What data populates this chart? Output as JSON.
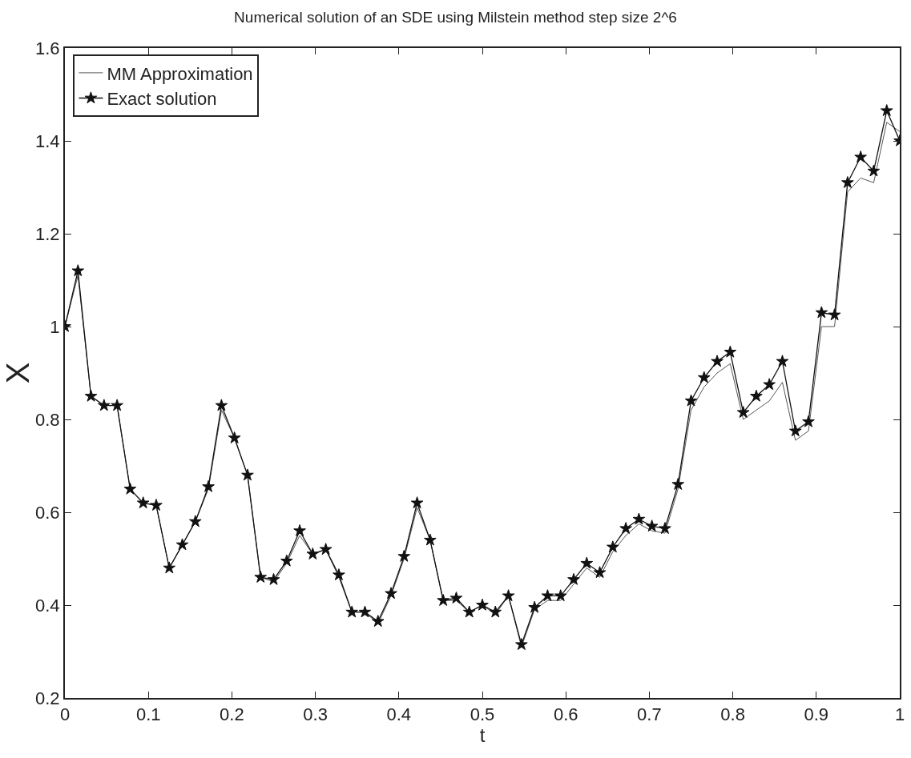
{
  "chart_data": {
    "type": "line",
    "title": "Numerical solution of an SDE using Milstein method step size 2^6",
    "xlabel": "t",
    "ylabel": "X",
    "x": [
      0,
      0.015625,
      0.03125,
      0.046875,
      0.0625,
      0.078125,
      0.09375,
      0.109375,
      0.125,
      0.140625,
      0.15625,
      0.171875,
      0.1875,
      0.203125,
      0.21875,
      0.234375,
      0.25,
      0.265625,
      0.28125,
      0.296875,
      0.3125,
      0.328125,
      0.34375,
      0.359375,
      0.375,
      0.390625,
      0.40625,
      0.421875,
      0.4375,
      0.453125,
      0.46875,
      0.484375,
      0.5,
      0.515625,
      0.53125,
      0.546875,
      0.5625,
      0.578125,
      0.59375,
      0.609375,
      0.625,
      0.640625,
      0.65625,
      0.671875,
      0.6875,
      0.703125,
      0.71875,
      0.734375,
      0.75,
      0.765625,
      0.78125,
      0.796875,
      0.8125,
      0.828125,
      0.84375,
      0.859375,
      0.875,
      0.890625,
      0.90625,
      0.921875,
      0.9375,
      0.953125,
      0.96875,
      0.984375,
      1
    ],
    "series": [
      {
        "name": "MM Approximation",
        "color": "#555555",
        "marker": "none",
        "values": [
          1.0,
          1.11,
          0.85,
          0.83,
          0.83,
          0.65,
          0.62,
          0.615,
          0.48,
          0.53,
          0.58,
          0.65,
          0.82,
          0.76,
          0.68,
          0.46,
          0.45,
          0.49,
          0.55,
          0.51,
          0.52,
          0.46,
          0.385,
          0.385,
          0.36,
          0.42,
          0.5,
          0.61,
          0.54,
          0.41,
          0.41,
          0.385,
          0.4,
          0.38,
          0.42,
          0.31,
          0.39,
          0.41,
          0.41,
          0.445,
          0.48,
          0.46,
          0.515,
          0.55,
          0.575,
          0.56,
          0.555,
          0.65,
          0.82,
          0.87,
          0.9,
          0.92,
          0.8,
          0.82,
          0.84,
          0.88,
          0.755,
          0.775,
          1.0,
          1.0,
          1.29,
          1.32,
          1.31,
          1.44,
          1.42
        ]
      },
      {
        "name": "Exact solution",
        "color": "#111111",
        "marker": "star",
        "values": [
          1.0,
          1.12,
          0.85,
          0.83,
          0.83,
          0.65,
          0.62,
          0.615,
          0.48,
          0.53,
          0.58,
          0.655,
          0.83,
          0.76,
          0.68,
          0.46,
          0.455,
          0.495,
          0.56,
          0.51,
          0.52,
          0.465,
          0.385,
          0.385,
          0.365,
          0.425,
          0.505,
          0.62,
          0.54,
          0.41,
          0.415,
          0.385,
          0.4,
          0.385,
          0.42,
          0.315,
          0.395,
          0.42,
          0.42,
          0.455,
          0.49,
          0.47,
          0.525,
          0.565,
          0.585,
          0.57,
          0.565,
          0.66,
          0.84,
          0.89,
          0.925,
          0.945,
          0.815,
          0.85,
          0.875,
          0.925,
          0.775,
          0.795,
          1.03,
          1.025,
          1.31,
          1.365,
          1.335,
          1.465,
          1.4
        ]
      }
    ],
    "xlim": [
      0,
      1
    ],
    "xticks": [
      0,
      0.1,
      0.2,
      0.3,
      0.4,
      0.5,
      0.6,
      0.7,
      0.8,
      0.9,
      1
    ],
    "ylim": [
      0.2,
      1.6
    ],
    "yticks": [
      0.2,
      0.4,
      0.6,
      0.8,
      1,
      1.2,
      1.4,
      1.6
    ],
    "legend": "top left",
    "line_style": "solid"
  }
}
